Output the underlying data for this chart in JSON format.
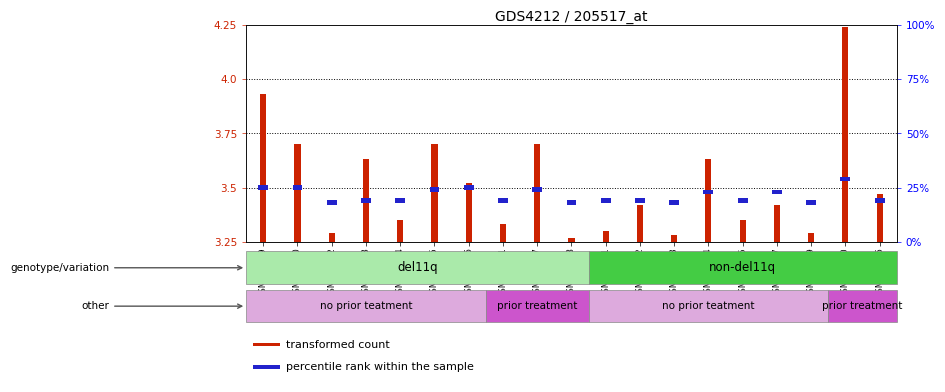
{
  "title": "GDS4212 / 205517_at",
  "samples": [
    "GSM652229",
    "GSM652230",
    "GSM652232",
    "GSM652233",
    "GSM652234",
    "GSM652235",
    "GSM652236",
    "GSM652231",
    "GSM652237",
    "GSM652238",
    "GSM652241",
    "GSM652242",
    "GSM652243",
    "GSM652244",
    "GSM652245",
    "GSM652247",
    "GSM652239",
    "GSM652240",
    "GSM652246"
  ],
  "red_values": [
    3.93,
    3.7,
    3.29,
    3.63,
    3.35,
    3.7,
    3.52,
    3.33,
    3.7,
    3.27,
    3.3,
    3.42,
    3.28,
    3.63,
    3.35,
    3.42,
    3.29,
    4.24,
    3.47
  ],
  "blue_values": [
    3.5,
    3.5,
    3.43,
    3.44,
    3.44,
    3.49,
    3.5,
    3.44,
    3.49,
    3.43,
    3.44,
    3.44,
    3.43,
    3.48,
    3.44,
    3.48,
    3.43,
    3.54,
    3.44
  ],
  "ylim_left": [
    3.25,
    4.25
  ],
  "ylim_right": [
    0,
    100
  ],
  "yticks_left": [
    3.25,
    3.5,
    3.75,
    4.0,
    4.25
  ],
  "yticks_right": [
    0,
    25,
    50,
    75,
    100
  ],
  "ytick_right_labels": [
    "0%",
    "25%",
    "50%",
    "75%",
    "100%"
  ],
  "gridlines": [
    4.0,
    3.75,
    3.5
  ],
  "bar_width": 0.18,
  "red_color": "#cc2200",
  "blue_color": "#2222cc",
  "bg_color": "#e8e8e8",
  "genotype_groups": [
    {
      "label": "del11q",
      "start": 0,
      "end": 10,
      "color": "#aaeaaa"
    },
    {
      "label": "non-del11q",
      "start": 10,
      "end": 19,
      "color": "#44cc44"
    }
  ],
  "other_groups": [
    {
      "label": "no prior teatment",
      "start": 0,
      "end": 7,
      "color": "#ddaadd"
    },
    {
      "label": "prior treatment",
      "start": 7,
      "end": 10,
      "color": "#cc55cc"
    },
    {
      "label": "no prior teatment",
      "start": 10,
      "end": 17,
      "color": "#ddaadd"
    },
    {
      "label": "prior treatment",
      "start": 17,
      "end": 19,
      "color": "#cc55cc"
    }
  ],
  "legend_items": [
    {
      "label": "transformed count",
      "color": "#cc2200"
    },
    {
      "label": "percentile rank within the sample",
      "color": "#2222cc"
    }
  ]
}
